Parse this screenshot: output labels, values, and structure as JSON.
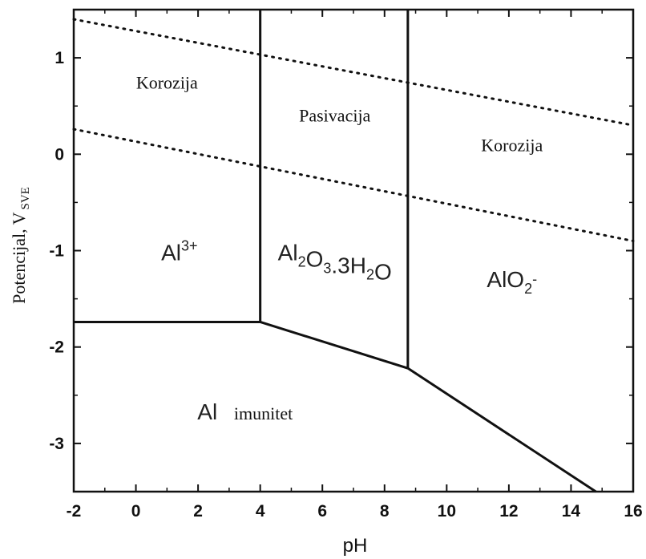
{
  "chart_data": {
    "type": "line",
    "title": "",
    "xlabel": "pH",
    "ylabel": {
      "main": "Potencijal, V",
      "subscript": "SVE"
    },
    "xlim": [
      -2,
      16
    ],
    "ylim": [
      -3.5,
      1.5
    ],
    "x_ticks": [
      -2,
      0,
      2,
      4,
      6,
      8,
      10,
      12,
      14,
      16
    ],
    "y_ticks": [
      1,
      0,
      -1,
      -2,
      -3
    ],
    "y_tick_labels": [
      "1",
      "0",
      "-1",
      "-2",
      "-3"
    ],
    "grid": false,
    "boundaries": [
      {
        "name": "al3-al-boundary",
        "style": "solid",
        "points": [
          [
            -2,
            -1.74
          ],
          [
            4,
            -1.74
          ]
        ]
      },
      {
        "name": "oxide-al-boundary",
        "style": "solid",
        "points": [
          [
            4,
            -1.74
          ],
          [
            8.75,
            -2.22
          ]
        ]
      },
      {
        "name": "alo2-al-boundary",
        "style": "solid",
        "points": [
          [
            8.75,
            -2.22
          ],
          [
            14.8,
            -3.5
          ]
        ]
      },
      {
        "name": "al3-oxide-boundary",
        "style": "solid",
        "points": [
          [
            4,
            -1.74
          ],
          [
            4,
            1.5
          ]
        ]
      },
      {
        "name": "oxide-alo2-boundary",
        "style": "solid",
        "points": [
          [
            8.75,
            -2.22
          ],
          [
            8.75,
            1.5
          ]
        ]
      },
      {
        "name": "water-upper-line",
        "style": "dotted",
        "points": [
          [
            -2,
            1.4
          ],
          [
            16,
            0.3
          ]
        ]
      },
      {
        "name": "water-lower-line",
        "style": "dotted",
        "points": [
          [
            -2,
            0.26
          ],
          [
            16,
            -0.9
          ]
        ]
      }
    ],
    "annotations": [
      {
        "name": "korozija-left",
        "text": "Korozija",
        "x": 1,
        "y": 0.68,
        "font": "serif"
      },
      {
        "name": "pasivacija",
        "text": "Pasivacija",
        "x": 6.4,
        "y": 0.34,
        "font": "serif"
      },
      {
        "name": "korozija-right",
        "text": "Korozija",
        "x": 12.1,
        "y": 0.03,
        "font": "serif"
      },
      {
        "name": "al3-species",
        "text": "Al",
        "sup": "3+",
        "x": 1.4,
        "y": -1.1,
        "font": "sans"
      },
      {
        "name": "oxide-species",
        "text": "Al2O3.3H2O",
        "parts": [
          [
            "Al",
            ""
          ],
          [
            "2",
            "sub"
          ],
          [
            "O",
            ""
          ],
          [
            "3",
            "sub"
          ],
          [
            ".3H",
            ""
          ],
          [
            "2",
            "sub"
          ],
          [
            "O",
            ""
          ]
        ],
        "x": 6.4,
        "y": -1.1,
        "font": "sans"
      },
      {
        "name": "alo2-species",
        "text": "AlO2-",
        "parts": [
          [
            "AlO",
            ""
          ],
          [
            "2",
            "sub"
          ],
          [
            "-",
            "sup"
          ]
        ],
        "x": 12.1,
        "y": -1.38,
        "font": "sans"
      },
      {
        "name": "al-species",
        "text": "Al",
        "x": 2.3,
        "y": -2.75,
        "font": "sans"
      },
      {
        "name": "imunitet-label",
        "text": "imunitet",
        "x": 4.1,
        "y": -2.75,
        "font": "serif"
      }
    ]
  }
}
